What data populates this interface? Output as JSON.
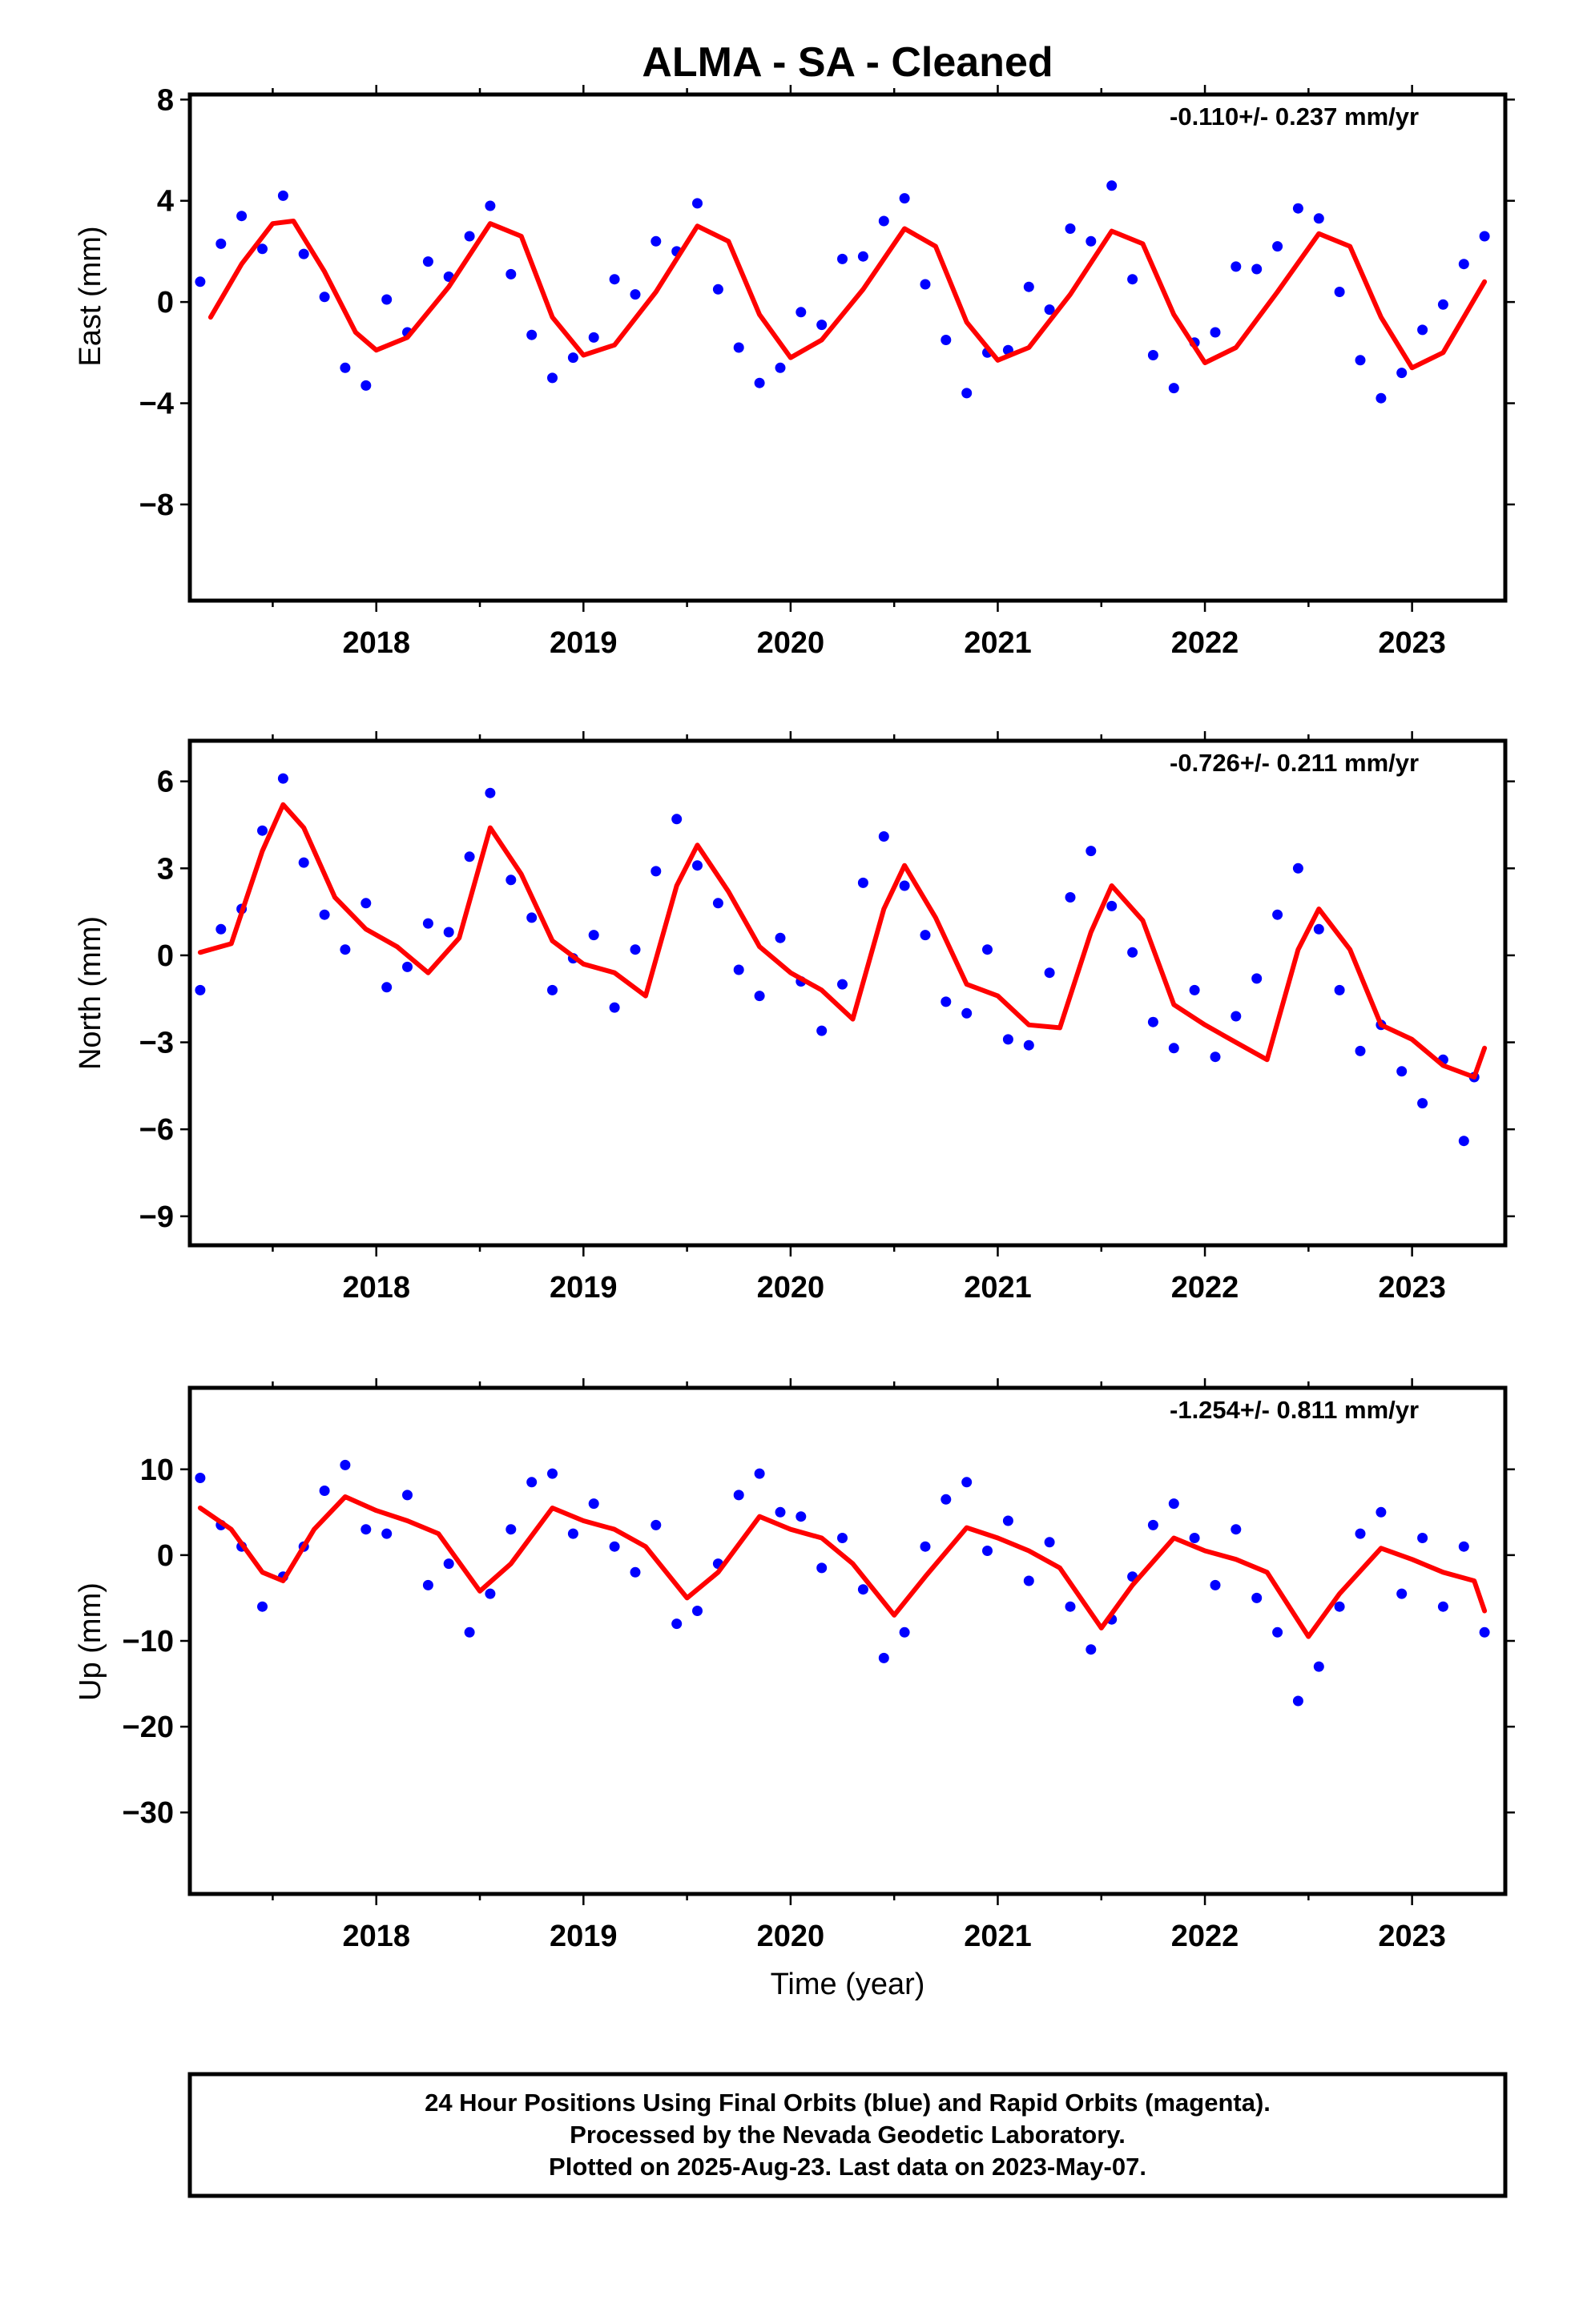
{
  "title": "ALMA  - SA - Cleaned",
  "colors": {
    "points": "#0000ff",
    "fit": "#ff0000",
    "frame": "#000000"
  },
  "chart_data": [
    {
      "type": "scatter",
      "ylabel": "East (mm)",
      "xlabel": "",
      "rate": "-0.110+/- 0.237 mm/yr",
      "xlim": [
        2017.1,
        2023.45
      ],
      "ylim": [
        -11.8,
        8.2
      ],
      "yticks": [
        8,
        4,
        0,
        -4,
        -8
      ],
      "ytick_labels": [
        "8",
        "4",
        "0",
        "−4",
        "−8"
      ],
      "xticks": [
        2018,
        2019,
        2020,
        2021,
        2022,
        2023
      ],
      "xtick_labels": [
        "2018",
        "2019",
        "2020",
        "2021",
        "2022",
        "2023"
      ],
      "fit": {
        "x": [
          2017.2,
          2017.35,
          2017.5,
          2017.6,
          2017.75,
          2017.9,
          2018.0,
          2018.15,
          2018.35,
          2018.55,
          2018.7,
          2018.85,
          2019.0,
          2019.15,
          2019.35,
          2019.55,
          2019.7,
          2019.85,
          2020.0,
          2020.15,
          2020.35,
          2020.55,
          2020.7,
          2020.85,
          2021.0,
          2021.15,
          2021.35,
          2021.55,
          2021.7,
          2021.85,
          2022.0,
          2022.15,
          2022.35,
          2022.55,
          2022.7,
          2022.85,
          2023.0,
          2023.15,
          2023.35
        ],
        "y": [
          -0.6,
          1.5,
          3.1,
          3.2,
          1.2,
          -1.2,
          -1.9,
          -1.4,
          0.6,
          3.1,
          2.6,
          -0.6,
          -2.1,
          -1.7,
          0.4,
          3.0,
          2.4,
          -0.5,
          -2.2,
          -1.5,
          0.5,
          2.9,
          2.2,
          -0.8,
          -2.3,
          -1.8,
          0.3,
          2.8,
          2.3,
          -0.5,
          -2.4,
          -1.8,
          0.4,
          2.7,
          2.2,
          -0.6,
          -2.6,
          -2.0,
          0.8
        ]
      },
      "points": {
        "x": [
          2017.15,
          2017.25,
          2017.35,
          2017.45,
          2017.55,
          2017.65,
          2017.75,
          2017.85,
          2017.95,
          2018.05,
          2018.15,
          2018.25,
          2018.35,
          2018.45,
          2018.55,
          2018.65,
          2018.75,
          2018.85,
          2018.95,
          2019.05,
          2019.15,
          2019.25,
          2019.35,
          2019.45,
          2019.55,
          2019.65,
          2019.75,
          2019.85,
          2019.95,
          2020.05,
          2020.15,
          2020.25,
          2020.35,
          2020.45,
          2020.55,
          2020.65,
          2020.75,
          2020.85,
          2020.95,
          2021.05,
          2021.15,
          2021.25,
          2021.35,
          2021.45,
          2021.55,
          2021.65,
          2021.75,
          2021.85,
          2021.95,
          2022.05,
          2022.15,
          2022.25,
          2022.35,
          2022.45,
          2022.55,
          2022.65,
          2022.75,
          2022.85,
          2022.95,
          2023.05,
          2023.15,
          2023.25,
          2023.35
        ],
        "y": [
          0.8,
          2.3,
          3.4,
          2.1,
          4.2,
          1.9,
          0.2,
          -2.6,
          -3.3,
          0.1,
          -1.2,
          1.6,
          1.0,
          2.6,
          3.8,
          1.1,
          -1.3,
          -3.0,
          -2.2,
          -1.4,
          0.9,
          0.3,
          2.4,
          2.0,
          3.9,
          0.5,
          -1.8,
          -3.2,
          -2.6,
          -0.4,
          -0.9,
          1.7,
          1.8,
          3.2,
          4.1,
          0.7,
          -1.5,
          -3.6,
          -2.0,
          -1.9,
          0.6,
          -0.3,
          2.9,
          2.4,
          4.6,
          0.9,
          -2.1,
          -3.4,
          -1.6,
          -1.2,
          1.4,
          1.3,
          2.2,
          3.7,
          3.3,
          0.4,
          -2.3,
          -3.8,
          -2.8,
          -1.1,
          -0.1,
          1.5,
          2.6
        ]
      }
    },
    {
      "type": "scatter",
      "ylabel": "North (mm)",
      "xlabel": "",
      "rate": "-0.726+/- 0.211 mm/yr",
      "xlim": [
        2017.1,
        2023.45
      ],
      "ylim": [
        -10.0,
        7.4
      ],
      "yticks": [
        6,
        3,
        0,
        -3,
        -6,
        -9
      ],
      "ytick_labels": [
        "6",
        "3",
        "0",
        "−3",
        "−6",
        "−9"
      ],
      "xticks": [
        2018,
        2019,
        2020,
        2021,
        2022,
        2023
      ],
      "xtick_labels": [
        "2018",
        "2019",
        "2020",
        "2021",
        "2022",
        "2023"
      ],
      "fit": {
        "x": [
          2017.15,
          2017.3,
          2017.45,
          2017.55,
          2017.65,
          2017.8,
          2017.95,
          2018.1,
          2018.25,
          2018.4,
          2018.55,
          2018.7,
          2018.85,
          2019.0,
          2019.15,
          2019.3,
          2019.45,
          2019.55,
          2019.7,
          2019.85,
          2020.0,
          2020.15,
          2020.3,
          2020.45,
          2020.55,
          2020.7,
          2020.85,
          2021.0,
          2021.15,
          2021.3,
          2021.45,
          2021.55,
          2021.7,
          2021.85,
          2022.0,
          2022.15,
          2022.3,
          2022.45,
          2022.55,
          2022.7,
          2022.85,
          2023.0,
          2023.15,
          2023.3,
          2023.35
        ],
        "y": [
          0.1,
          0.4,
          3.6,
          5.2,
          4.4,
          2.0,
          0.9,
          0.3,
          -0.6,
          0.6,
          4.4,
          2.8,
          0.5,
          -0.3,
          -0.6,
          -1.4,
          2.4,
          3.8,
          2.2,
          0.3,
          -0.6,
          -1.2,
          -2.2,
          1.6,
          3.1,
          1.3,
          -1.0,
          -1.4,
          -2.4,
          -2.5,
          0.8,
          2.4,
          1.2,
          -1.7,
          -2.4,
          -3.0,
          -3.6,
          0.2,
          1.6,
          0.2,
          -2.4,
          -2.9,
          -3.8,
          -4.2,
          -3.2
        ]
      },
      "points": {
        "x": [
          2017.15,
          2017.25,
          2017.35,
          2017.45,
          2017.55,
          2017.65,
          2017.75,
          2017.85,
          2017.95,
          2018.05,
          2018.15,
          2018.25,
          2018.35,
          2018.45,
          2018.55,
          2018.65,
          2018.75,
          2018.85,
          2018.95,
          2019.05,
          2019.15,
          2019.25,
          2019.35,
          2019.45,
          2019.55,
          2019.65,
          2019.75,
          2019.85,
          2019.95,
          2020.05,
          2020.15,
          2020.25,
          2020.35,
          2020.45,
          2020.55,
          2020.65,
          2020.75,
          2020.85,
          2020.95,
          2021.05,
          2021.15,
          2021.25,
          2021.35,
          2021.45,
          2021.55,
          2021.65,
          2021.75,
          2021.85,
          2021.95,
          2022.05,
          2022.15,
          2022.25,
          2022.35,
          2022.45,
          2022.55,
          2022.65,
          2022.75,
          2022.85,
          2022.95,
          2023.05,
          2023.15,
          2023.25,
          2023.3
        ],
        "y": [
          -1.2,
          0.9,
          1.6,
          4.3,
          6.1,
          3.2,
          1.4,
          0.2,
          1.8,
          -1.1,
          -0.4,
          1.1,
          0.8,
          3.4,
          5.6,
          2.6,
          1.3,
          -1.2,
          -0.1,
          0.7,
          -1.8,
          0.2,
          2.9,
          4.7,
          3.1,
          1.8,
          -0.5,
          -1.4,
          0.6,
          -0.9,
          -2.6,
          -1.0,
          2.5,
          4.1,
          2.4,
          0.7,
          -1.6,
          -2.0,
          0.2,
          -2.9,
          -3.1,
          -0.6,
          2.0,
          3.6,
          1.7,
          0.1,
          -2.3,
          -3.2,
          -1.2,
          -3.5,
          -2.1,
          -0.8,
          1.4,
          3.0,
          0.9,
          -1.2,
          -3.3,
          -2.4,
          -4.0,
          -5.1,
          -3.6,
          -6.4,
          -4.2
        ]
      }
    },
    {
      "type": "scatter",
      "ylabel": "Up (mm)",
      "xlabel": "Time (year)",
      "rate": "-1.254+/- 0.811 mm/yr",
      "xlim": [
        2017.1,
        2023.45
      ],
      "ylim": [
        -39.5,
        19.5
      ],
      "yticks": [
        10,
        0,
        -10,
        -20,
        -30
      ],
      "ytick_labels": [
        "10",
        "0",
        "−10",
        "−20",
        "−30"
      ],
      "xticks": [
        2018,
        2019,
        2020,
        2021,
        2022,
        2023
      ],
      "xtick_labels": [
        "2018",
        "2019",
        "2020",
        "2021",
        "2022",
        "2023"
      ],
      "fit": {
        "x": [
          2017.15,
          2017.3,
          2017.45,
          2017.55,
          2017.7,
          2017.85,
          2018.0,
          2018.15,
          2018.3,
          2018.5,
          2018.65,
          2018.85,
          2019.0,
          2019.15,
          2019.3,
          2019.5,
          2019.65,
          2019.85,
          2020.0,
          2020.15,
          2020.3,
          2020.5,
          2020.65,
          2020.85,
          2021.0,
          2021.15,
          2021.3,
          2021.5,
          2021.65,
          2021.85,
          2022.0,
          2022.15,
          2022.3,
          2022.5,
          2022.65,
          2022.85,
          2023.0,
          2023.15,
          2023.3,
          2023.35
        ],
        "y": [
          5.5,
          3.0,
          -2.0,
          -3.0,
          3.0,
          6.8,
          5.2,
          4.0,
          2.5,
          -4.2,
          -1.0,
          5.5,
          4.0,
          3.0,
          1.0,
          -5.0,
          -2.0,
          4.5,
          3.0,
          2.0,
          -1.0,
          -7.0,
          -2.5,
          3.2,
          2.0,
          0.5,
          -1.5,
          -8.5,
          -3.5,
          2.0,
          0.5,
          -0.5,
          -2.0,
          -9.5,
          -4.5,
          0.8,
          -0.5,
          -2.0,
          -3.0,
          -6.5
        ]
      },
      "points": {
        "x": [
          2017.15,
          2017.25,
          2017.35,
          2017.45,
          2017.55,
          2017.65,
          2017.75,
          2017.85,
          2017.95,
          2018.05,
          2018.15,
          2018.25,
          2018.35,
          2018.45,
          2018.55,
          2018.65,
          2018.75,
          2018.85,
          2018.95,
          2019.05,
          2019.15,
          2019.25,
          2019.35,
          2019.45,
          2019.55,
          2019.65,
          2019.75,
          2019.85,
          2019.95,
          2020.05,
          2020.15,
          2020.25,
          2020.35,
          2020.45,
          2020.55,
          2020.65,
          2020.75,
          2020.85,
          2020.95,
          2021.05,
          2021.15,
          2021.25,
          2021.35,
          2021.45,
          2021.55,
          2021.65,
          2021.75,
          2021.85,
          2021.95,
          2022.05,
          2022.15,
          2022.25,
          2022.35,
          2022.45,
          2022.55,
          2022.65,
          2022.75,
          2022.85,
          2022.95,
          2023.05,
          2023.15,
          2023.25,
          2023.35
        ],
        "y": [
          9.0,
          3.5,
          1.0,
          -6.0,
          -2.5,
          1.0,
          7.5,
          10.5,
          3.0,
          2.5,
          7.0,
          -3.5,
          -1.0,
          -9.0,
          -4.5,
          3.0,
          8.5,
          9.5,
          2.5,
          6.0,
          1.0,
          -2.0,
          3.5,
          -8.0,
          -6.5,
          -1.0,
          7.0,
          9.5,
          5.0,
          4.5,
          -1.5,
          2.0,
          -4.0,
          -12.0,
          -9.0,
          1.0,
          6.5,
          8.5,
          0.5,
          4.0,
          -3.0,
          1.5,
          -6.0,
          -11.0,
          -7.5,
          -2.5,
          3.5,
          6.0,
          2.0,
          -3.5,
          3.0,
          -5.0,
          -9.0,
          -17.0,
          -13.0,
          -6.0,
          2.5,
          5.0,
          -4.5,
          2.0,
          -6.0,
          1.0,
          -9.0
        ]
      }
    }
  ],
  "footer": {
    "line1": "24 Hour Positions Using Final Orbits (blue) and Rapid Orbits (magenta).",
    "line2": "Processed by the Nevada Geodetic Laboratory.",
    "line3": "Plotted on 2025-Aug-23. Last data on 2023-May-07."
  }
}
